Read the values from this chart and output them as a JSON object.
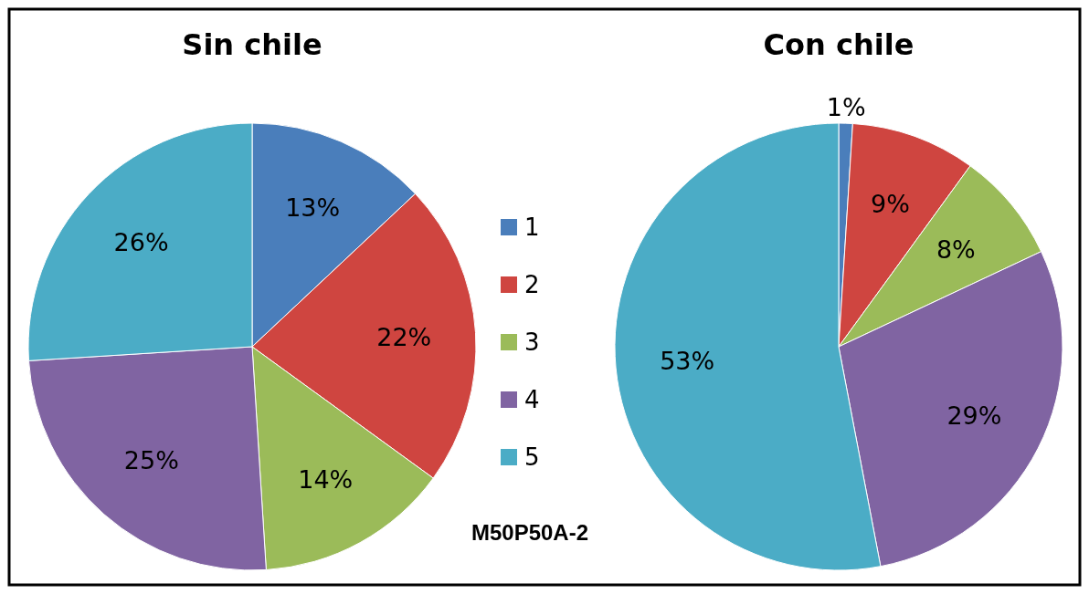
{
  "chart_data": [
    {
      "type": "pie",
      "title": "Sin chile",
      "categories": [
        "1",
        "2",
        "3",
        "4",
        "5"
      ],
      "values": [
        13,
        22,
        14,
        25,
        26
      ],
      "value_labels": [
        "13%",
        "22%",
        "14%",
        "25%",
        "26%"
      ],
      "colors": [
        "#4a7ebb",
        "#cf4540",
        "#9bbb59",
        "#8064a2",
        "#4bacc6"
      ],
      "legend": "right",
      "annotations": [
        "M50P50A-2"
      ]
    },
    {
      "type": "pie",
      "title": "Con chile",
      "categories": [
        null,
        null,
        null,
        null,
        null
      ],
      "values": [
        1,
        9,
        8,
        29,
        53
      ],
      "value_labels": [
        "1%",
        "9%",
        "8%",
        "29%",
        "53%"
      ],
      "colors": [
        "#4a7ebb",
        "#cf4540",
        "#9bbb59",
        "#8064a2",
        "#4bacc6"
      ]
    }
  ]
}
